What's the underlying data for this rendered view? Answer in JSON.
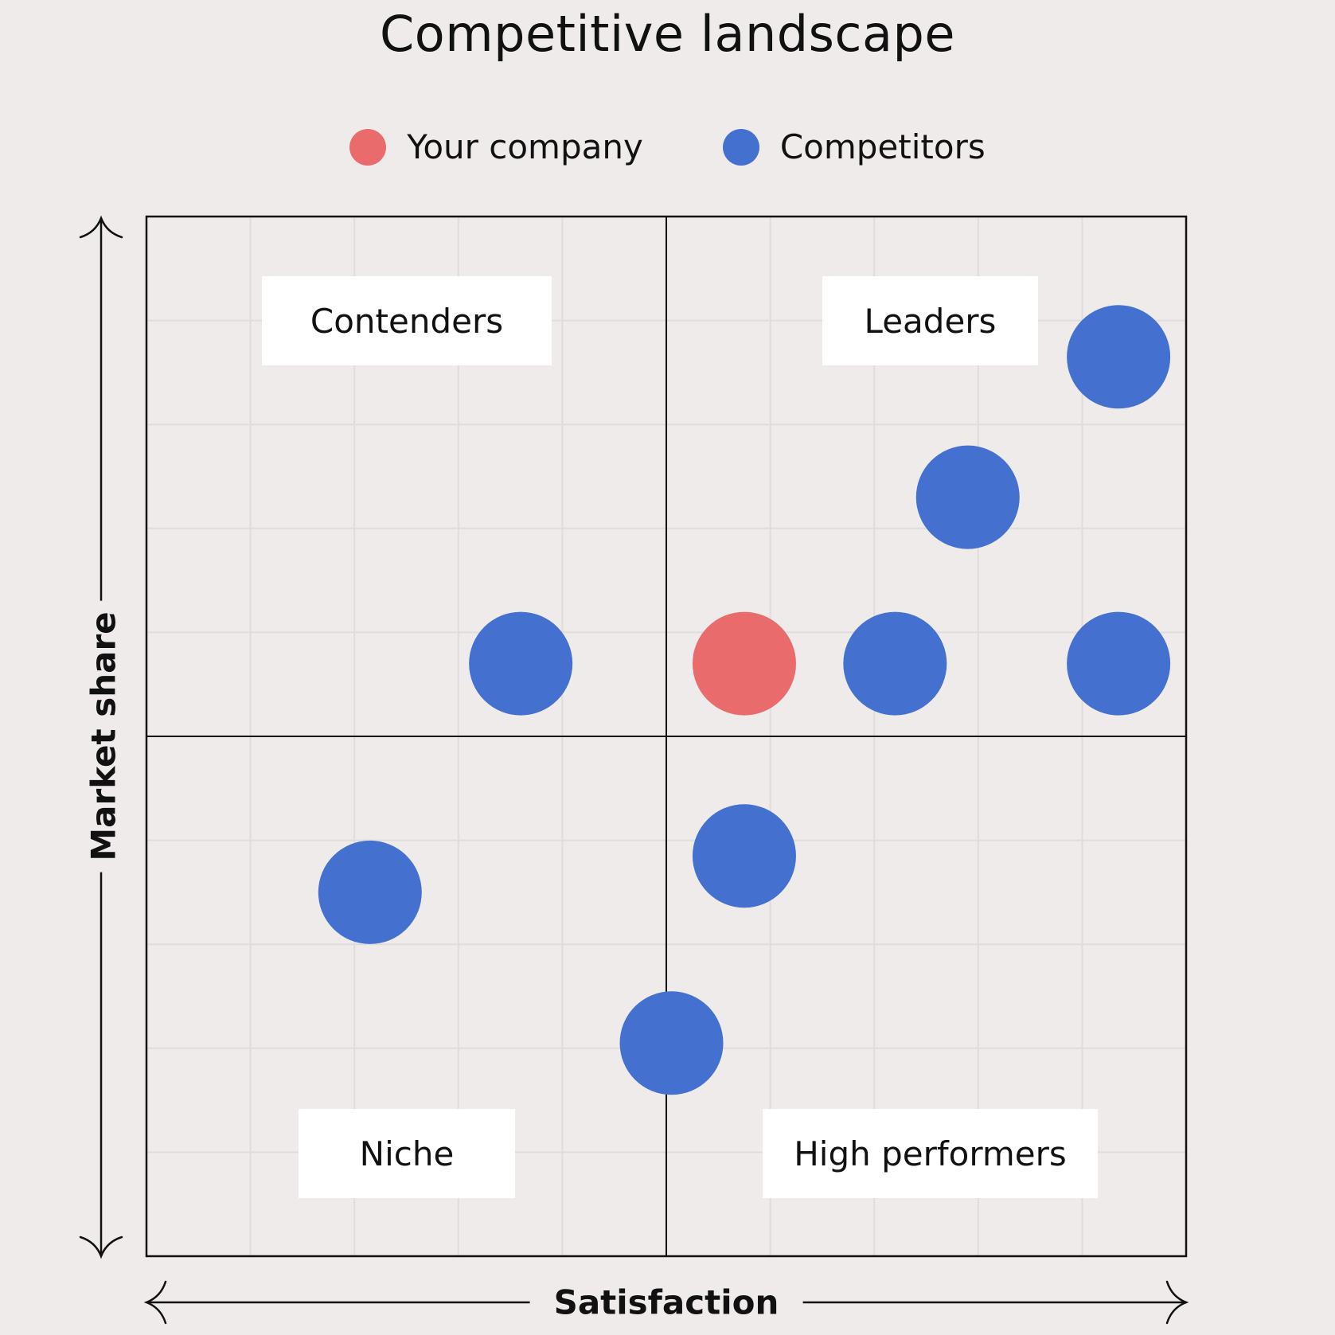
{
  "colors": {
    "your_company": "#ea6b6b",
    "competitors": "#4470d0",
    "background": "#efebeb",
    "gridline": "#e0dcdc",
    "frame": "#111111"
  },
  "chart_data": {
    "type": "scatter",
    "title": "Competitive landscape",
    "xlabel": "Satisfaction",
    "ylabel": "Market share",
    "xlim": [
      0,
      10
    ],
    "ylim": [
      0,
      10
    ],
    "quadrant_split": {
      "x": 5,
      "y": 5
    },
    "grid": true,
    "legend_position": "top-center",
    "legend": [
      {
        "label": "Your company",
        "color": "#ea6b6b"
      },
      {
        "label": "Competitors",
        "color": "#4470d0"
      }
    ],
    "quadrants": {
      "top_left": "Contenders",
      "top_right": "Leaders",
      "bottom_left": "Niche",
      "bottom_right": "High performers"
    },
    "series": [
      {
        "name": "Your company",
        "points": [
          {
            "x": 5.75,
            "y": 5.7
          }
        ]
      },
      {
        "name": "Competitors",
        "points": [
          {
            "x": 9.35,
            "y": 8.65
          },
          {
            "x": 7.9,
            "y": 7.3
          },
          {
            "x": 3.6,
            "y": 5.7
          },
          {
            "x": 7.2,
            "y": 5.7
          },
          {
            "x": 9.35,
            "y": 5.7
          },
          {
            "x": 5.75,
            "y": 3.85
          },
          {
            "x": 2.15,
            "y": 3.5
          },
          {
            "x": 5.05,
            "y": 2.05
          }
        ]
      }
    ]
  }
}
